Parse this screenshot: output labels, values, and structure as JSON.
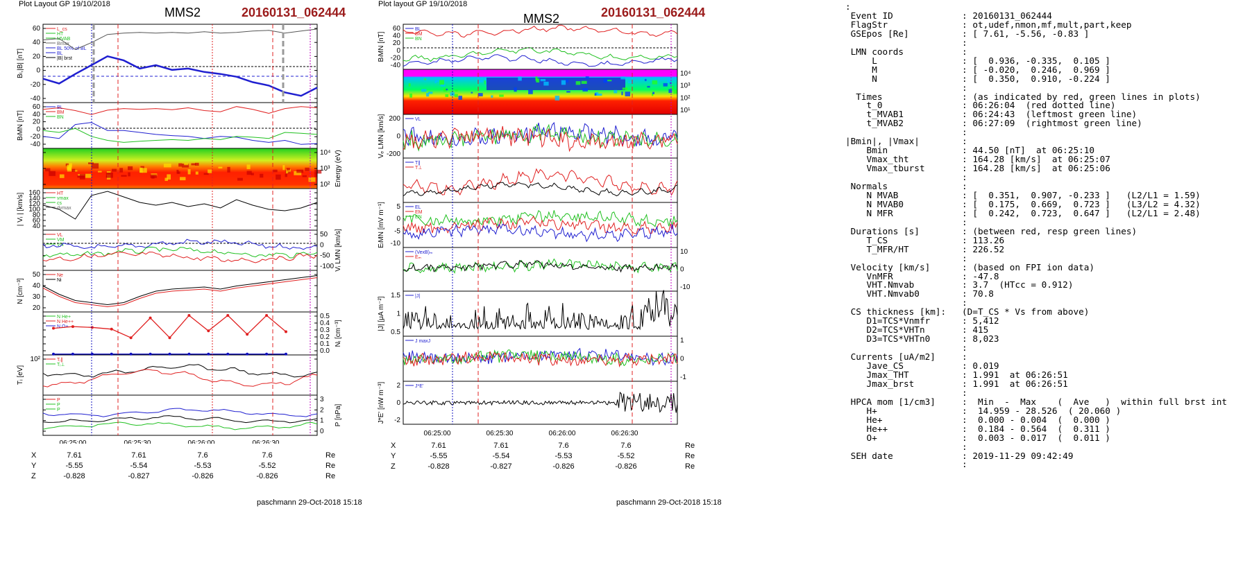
{
  "left": {
    "header": "Plot Layout GP 19/10/2018",
    "title": "MMS2",
    "event": "20160131_062444",
    "footer": "paschmann 29-Oct-2018 15:18",
    "time_ticks": [
      "06:25:00",
      "06:25:30",
      "06:26:00",
      "06:26:30"
    ],
    "coords": [
      {
        "label": "X",
        "values": [
          "7.61",
          "7.61",
          "7.6",
          "7.6"
        ],
        "unit": "Re"
      },
      {
        "label": "Y",
        "values": [
          "-5.55",
          "-5.54",
          "-5.53",
          "-5.52"
        ],
        "unit": "Re"
      },
      {
        "label": "Z",
        "values": [
          "-0.828",
          "-0.827",
          "-0.826",
          "-0.826"
        ],
        "unit": "Re"
      }
    ],
    "panels": [
      {
        "ylabel": "Bₗ,|B| [nT]",
        "ticks": [
          "60",
          "40",
          "20",
          "0",
          "-20",
          "-40"
        ],
        "legend": [
          "L_cs",
          "HT",
          "MVAB",
          "Bmax",
          "BL 50% of BL",
          "BL",
          "|B| brst"
        ],
        "side": "left"
      },
      {
        "ylabel": "BₗMN [nT]",
        "ticks": [
          "60",
          "40",
          "20",
          "0",
          "-20",
          "-40"
        ],
        "legend": [
          "BL",
          "BM",
          "BN"
        ],
        "side": "left"
      },
      {
        "ylabel": "Energy (eV)",
        "ticks": [
          "10⁴",
          "10³",
          "10²"
        ],
        "legend": [],
        "side": "right"
      },
      {
        "ylabel": "| Vᵢ | [km/s]",
        "ticks": [
          "160",
          "140",
          "120",
          "100",
          "80",
          "60",
          "40"
        ],
        "legend": [
          "HT",
          "vmax",
          "cs",
          "dvmax"
        ],
        "side": "left"
      },
      {
        "ylabel": "Vᵢ LMN [km/s]",
        "ticks": [
          "50",
          "0",
          "-50",
          "-100"
        ],
        "legend": [
          "VL",
          "VM",
          "VN"
        ],
        "side": "right"
      },
      {
        "ylabel": "N [cm⁻³]",
        "ticks": [
          "50",
          "40",
          "30",
          "20"
        ],
        "legend": [
          "Ne",
          "Ni"
        ],
        "side": "left"
      },
      {
        "ylabel": "Nᵢ [cm⁻³]",
        "ticks": [
          "0.5",
          "0.4",
          "0.3",
          "0.2",
          "0.1",
          "0.0"
        ],
        "legend": [
          "N He+",
          "N He++",
          "N O+"
        ],
        "side": "right"
      },
      {
        "ylabel": "Tᵢ [eV]",
        "ticks": [
          "10²"
        ],
        "legend": [
          "Tᵢ∥",
          "Tᵢ⊥"
        ],
        "side": "left"
      },
      {
        "ylabel": "P [nPa]",
        "ticks": [
          "3",
          "2",
          "1",
          "0"
        ],
        "legend": [
          "P",
          "P",
          "P"
        ],
        "side": "right"
      }
    ]
  },
  "middle": {
    "header": "Plot layout GP 19/10/2018",
    "title": "MMS2",
    "event": "20160131_062444",
    "footer": "paschmann 29-Oct-2018 15:18",
    "time_ticks": [
      "06:25:00",
      "06:25:30",
      "06:26:00",
      "06:26:30"
    ],
    "coords": [
      {
        "label": "X",
        "values": [
          "7.61",
          "7.61",
          "7.6",
          "7.6"
        ],
        "unit": "Re"
      },
      {
        "label": "Y",
        "values": [
          "-5.55",
          "-5.54",
          "-5.53",
          "-5.52"
        ],
        "unit": "Re"
      },
      {
        "label": "Z",
        "values": [
          "-0.828",
          "-0.827",
          "-0.826",
          "-0.826"
        ],
        "unit": "Re"
      }
    ],
    "panels": [
      {
        "ylabel": "BₗMN [nT]",
        "ticks": [
          "60",
          "40",
          "20",
          "0",
          "-20",
          "-40"
        ],
        "legend": [
          "BL",
          "BM",
          "BN"
        ],
        "side": "left"
      },
      {
        "ylabel": "Energy (eV)",
        "ticks": [
          "10⁴",
          "10³",
          "10²",
          "10¹"
        ],
        "legend": [],
        "side": "right"
      },
      {
        "ylabel": "Vₑ LMN [km/s]",
        "ticks": [
          "200",
          "0",
          "-200"
        ],
        "legend": [
          "VL"
        ],
        "side": "left"
      },
      {
        "ylabel": "Tₑ [eV]",
        "ticks": [],
        "legend": [
          "T∥",
          "T⊥"
        ],
        "side": "right"
      },
      {
        "ylabel": "EₗMN [mV m⁻¹]",
        "ticks": [
          "5",
          "0",
          "-5",
          "-10"
        ],
        "legend": [
          "EL",
          "EM",
          "EN"
        ],
        "side": "left"
      },
      {
        "ylabel": "Eₘ [mV m⁻²]",
        "ticks": [
          "10",
          "0",
          "-10"
        ],
        "legend": [
          "(VexB)ₘ",
          "Eₘ"
        ],
        "side": "right"
      },
      {
        "ylabel": "|J| [μA m⁻²]",
        "ticks": [
          "1.5",
          "1",
          "0.5"
        ],
        "legend": [
          "|J|"
        ],
        "side": "left"
      },
      {
        "ylabel": "J [μA m⁻²]",
        "ticks": [
          "1",
          "0",
          "-1"
        ],
        "legend": [
          "J maxJ"
        ],
        "side": "right"
      },
      {
        "ylabel": "J*E' [nW m⁻³]",
        "ticks": [
          "2",
          "0",
          "-2"
        ],
        "legend": [
          "J*E'"
        ],
        "side": "left"
      }
    ]
  },
  "info": {
    "lines": [
      ":",
      " Event ID             : 20160131_062444",
      " FlagStr              : ot,udef,nmon,mf,mult,part,keep",
      " GSEpos [Re]          : [ 7.61, -5.56, -0.83 ]",
      "                      :",
      " LMN coords           :",
      "     L                : [  0.936, -0.335,  0.105 ]",
      "     M                : [ -0.020,  0.246,  0.969 ]",
      "     N                : [  0.350,  0.910, -0.224 ]",
      "                      :",
      "  Times               : (as indicated by red, green lines in plots)",
      "    t_0               : 06:26:04  (red dotted line)",
      "    t_MVAB1           : 06:24:43  (leftmost green line)",
      "    t_MVAB2           : 06:27:09  (rightmost green line)",
      "                      :",
      "|Bmin|, |Vmax|        :",
      "    Bmin              : 44.50 [nT]  at 06:25:10",
      "    Vmax_tht          : 164.28 [km/s]  at 06:25:07",
      "    Vmax_tburst       : 164.28 [km/s]  at 06:25:06",
      "                      :",
      " Normals              :",
      "    N MVAB            : [  0.351,  0.907, -0.233 ]   (L2/L1 = 1.59)",
      "    N MVAB0           : [  0.175,  0.669,  0.723 ]   (L3/L2 = 4.32)",
      "    N MFR             : [  0.242,  0.723,  0.647 ]   (L2/L1 = 2.48)",
      "                      :",
      " Durations [s]        : (between red, resp green lines)",
      "    T_CS              : 113.26",
      "    T_MFR/HT          : 226.52",
      "                      :",
      " Velocity [km/s]      : (based on FPI ion data)",
      "    VnMFR             : -47.8",
      "    VHT.Nmvab         : 3.7  (HTcc = 0.912)",
      "    VHT.Nmvab0        : 70.8",
      "                      :",
      " CS thickness [km]:   (D=T_CS * Vs from above)",
      "    D1=TCS*Vnmfr      : 5,412",
      "    D2=TCS*VHTn       : 415",
      "    D3=TCS*VHTn0      : 8,023",
      "                      :",
      " Currents [uA/m2]     :",
      "    Jave_CS           : 0.019",
      "    Jmax_THT          : 1.991  at 06:26:51",
      "    Jmax_brst         : 1.991  at 06:26:51",
      "                      :",
      " HPCA mom [1/cm3]     :  Min  -  Max    (  Ave   )  within full brst int",
      "    H+                :  14.959 - 28.526  ( 20.060 )",
      "    He+               :  0.000 - 0.004  (  0.000 )",
      "    He++              :  0.184 - 0.564  (  0.311 )",
      "    O+                :  0.003 - 0.017  (  0.011 )",
      "                      :",
      " SEH date             : 2019-11-29 09:42:49",
      "                      :"
    ]
  },
  "chart_data": [
    {
      "type": "line",
      "title": "MMS2 20160131_062444",
      "xlabel": "",
      "x_ticks": [
        "06:25:00",
        "06:25:30",
        "06:26:00",
        "06:26:30"
      ],
      "panels": [
        {
          "name": "BL,|B| [nT]",
          "ylim": [
            -50,
            65
          ],
          "series": [
            {
              "name": "|B|",
              "color": "#555555",
              "values": [
                42,
                44,
                28,
                38,
                50,
                52,
                53,
                52,
                53,
                52,
                54,
                52,
                53,
                55,
                56,
                52,
                55,
                58
              ]
            },
            {
              "name": "BL",
              "color": "#1f1fd0",
              "values": [
                -15,
                -22,
                -8,
                5,
                18,
                12,
                0,
                5,
                -2,
                0,
                -5,
                -8,
                -12,
                -20,
                -25,
                -35,
                -40,
                -28
              ]
            }
          ]
        },
        {
          "name": "BLMN [nT]",
          "ylim": [
            -50,
            65
          ],
          "series": [
            {
              "name": "BL",
              "color": "#1f1fd0",
              "values": [
                -20,
                -25,
                10,
                15,
                -5,
                -5,
                -10,
                -15,
                -18,
                -20,
                -25,
                -20,
                -22,
                -30,
                -35,
                -30,
                -40,
                -38
              ]
            },
            {
              "name": "BM",
              "color": "#e02020",
              "values": [
                48,
                52,
                45,
                35,
                46,
                50,
                48,
                50,
                47,
                52,
                45,
                42,
                55,
                48,
                38,
                50,
                55,
                52
              ]
            },
            {
              "name": "BN",
              "color": "#20c020",
              "values": [
                -5,
                -10,
                0,
                -20,
                -30,
                -35,
                -32,
                -30,
                -28,
                -30,
                -25,
                -28,
                -20,
                -22,
                -25,
                -10,
                -12,
                -15
              ]
            }
          ]
        },
        {
          "name": "|Vi| [km/s]",
          "ylim": [
            20,
            170
          ],
          "series": [
            {
              "name": "|Vi|",
              "color": "#000000",
              "values": [
                110,
                95,
                60,
                145,
                160,
                140,
                120,
                110,
                120,
                105,
                115,
                100,
                130,
                110,
                95,
                90,
                100,
                120
              ]
            }
          ]
        },
        {
          "name": "N [cm-3]",
          "ylim": [
            15,
            55
          ],
          "series": [
            {
              "name": "Ne",
              "color": "#e02020",
              "values": [
                38,
                30,
                24,
                22,
                20,
                22,
                28,
                33,
                35,
                36,
                37,
                35,
                38,
                40,
                42,
                44,
                46,
                48
              ]
            },
            {
              "name": "Ni",
              "color": "#000000",
              "values": [
                40,
                32,
                26,
                24,
                22,
                24,
                30,
                35,
                37,
                38,
                39,
                37,
                40,
                42,
                44,
                46,
                48,
                50
              ]
            }
          ]
        },
        {
          "name": "Ni [cm-3]",
          "ylim": [
            0,
            0.5
          ],
          "series": [
            {
              "name": "N He++",
              "color": "#e02020",
              "values": [
                0.31,
                0.33,
                0.32,
                0.3,
                0.2,
                0.43,
                0.2,
                0.46,
                0.28,
                0.46,
                0.24,
                0.46,
                0.27
              ]
            },
            {
              "name": "N O+",
              "color": "#1010c0",
              "values": [
                0.01,
                0.01,
                0.01,
                0.01,
                0.01,
                0.01,
                0.01,
                0.01,
                0.01,
                0.01,
                0.01,
                0.01,
                0.01
              ]
            }
          ]
        }
      ]
    }
  ]
}
